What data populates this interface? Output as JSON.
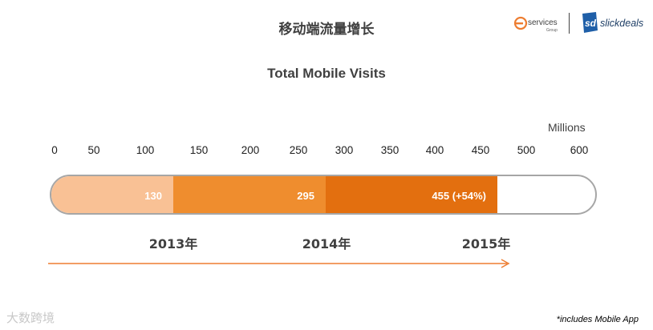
{
  "header": {
    "title": "移动端流量增长",
    "logos": {
      "services_text": "services",
      "services_sub": "Group",
      "slick_mark": "sd",
      "slick_text": "slickdeals"
    }
  },
  "chart_data": {
    "type": "bar",
    "title": "Total Mobile Visits",
    "unit": "Millions",
    "orientation": "horizontal-stacked-progress",
    "xlim": [
      0,
      600
    ],
    "ticks": [
      "0",
      "50",
      "100",
      "150",
      "200",
      "250",
      "300",
      "350",
      "400",
      "450",
      "500",
      "600"
    ],
    "categories": [
      "2013年",
      "2014年",
      "2015年"
    ],
    "values": [
      130,
      295,
      455
    ],
    "labels": [
      "130",
      "295",
      "455  (+54%)"
    ],
    "colors": [
      "#f9c195",
      "#ef8d2e",
      "#e36f0f"
    ],
    "frame_color": "#a6a6a6",
    "arrow_color": "#ed7d31"
  },
  "footnote": "*includes Mobile App",
  "watermark": "大数跨境"
}
